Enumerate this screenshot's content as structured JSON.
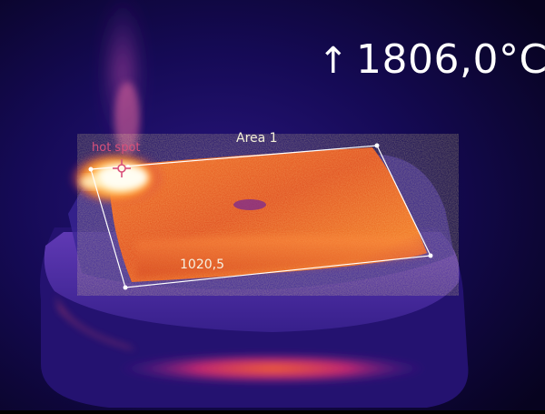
{
  "max_temperature": {
    "arrow": "↑",
    "value": "1806,0°C"
  },
  "area_measurement": {
    "label": "Area 1",
    "value": "1020,5"
  },
  "hot_spot": {
    "label": "hot spot"
  },
  "colors": {
    "background": "#0a0530",
    "cool": "#2a1a8a",
    "medium": "#9a2090",
    "warm": "#e0501a",
    "hot": "#ffd060",
    "hottest": "#fff8e0",
    "area_outline": "#ffffff",
    "hotspot_marker": "#d9507a"
  }
}
